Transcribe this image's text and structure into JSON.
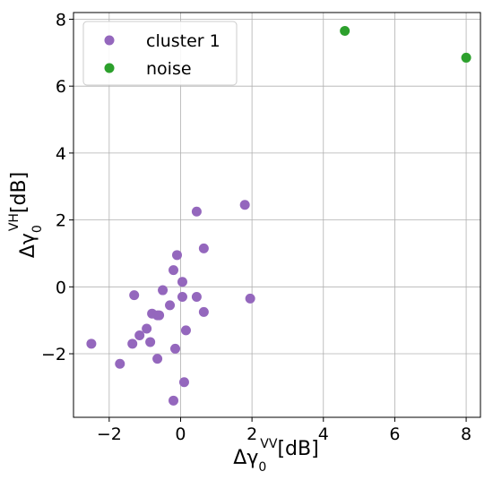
{
  "chart_data": {
    "type": "scatter",
    "xlabel": "Δγ",
    "xlabel_sub": "0",
    "xlabel_sup": "VV",
    "xlabel_unit": "[dB]",
    "ylabel": "Δγ",
    "ylabel_sub": "0",
    "ylabel_sup": "VH",
    "ylabel_unit": "[dB]",
    "xlim": [
      -3.0,
      8.4
    ],
    "ylim": [
      -3.9,
      8.2
    ],
    "xticks": [
      -2,
      0,
      2,
      4,
      6,
      8
    ],
    "yticks": [
      -2,
      0,
      2,
      4,
      6,
      8
    ],
    "grid": true,
    "legend_position": "top-left",
    "series": [
      {
        "name": "cluster 1",
        "color": "#9467bd",
        "points": [
          [
            -2.5,
            -1.7
          ],
          [
            -1.7,
            -2.3
          ],
          [
            -1.35,
            -1.7
          ],
          [
            -1.3,
            -0.25
          ],
          [
            -1.15,
            -1.45
          ],
          [
            -0.95,
            -1.25
          ],
          [
            -0.85,
            -1.65
          ],
          [
            -0.8,
            -0.8
          ],
          [
            -0.65,
            -0.85
          ],
          [
            -0.6,
            -0.85
          ],
          [
            -0.65,
            -2.15
          ],
          [
            -0.5,
            -0.1
          ],
          [
            -0.3,
            -0.55
          ],
          [
            -0.2,
            0.5
          ],
          [
            -0.15,
            -1.85
          ],
          [
            -0.2,
            -3.4
          ],
          [
            -0.1,
            0.95
          ],
          [
            0.05,
            0.15
          ],
          [
            0.05,
            -0.3
          ],
          [
            0.1,
            -2.85
          ],
          [
            0.15,
            -1.3
          ],
          [
            0.45,
            -0.3
          ],
          [
            0.45,
            2.25
          ],
          [
            0.65,
            -0.75
          ],
          [
            0.65,
            1.15
          ],
          [
            1.8,
            2.45
          ],
          [
            1.95,
            -0.35
          ]
        ]
      },
      {
        "name": "noise",
        "color": "#2ca02c",
        "points": [
          [
            4.6,
            7.65
          ],
          [
            8.0,
            6.85
          ]
        ]
      }
    ]
  }
}
